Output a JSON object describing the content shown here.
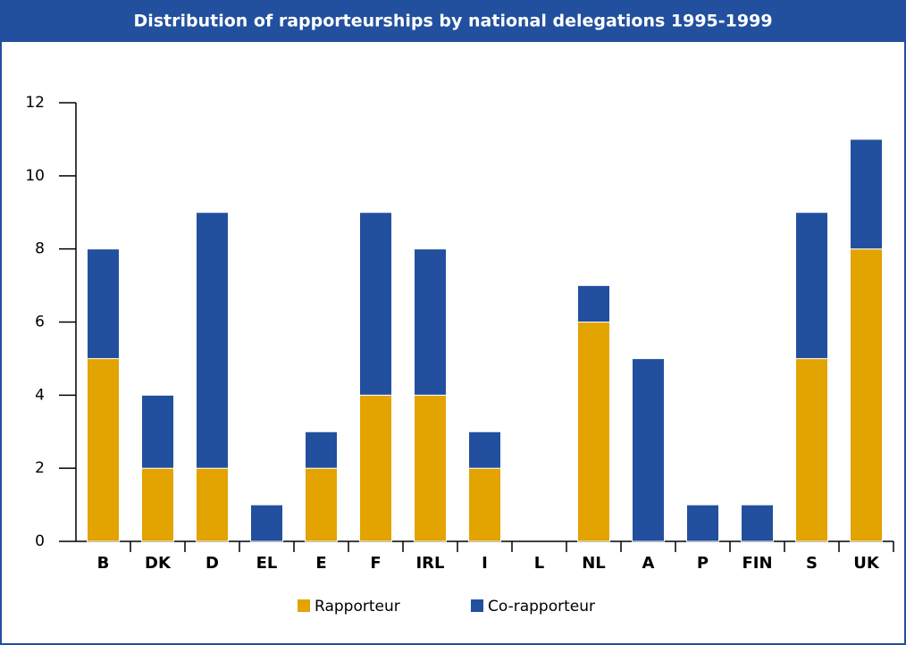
{
  "chart_data": {
    "type": "stacked_bar",
    "title": "Distribution of rapporteurships by national delegations 1995-1999",
    "categories": [
      "B",
      "DK",
      "D",
      "EL",
      "E",
      "F",
      "IRL",
      "I",
      "L",
      "NL",
      "A",
      "P",
      "FIN",
      "S",
      "UK"
    ],
    "series": [
      {
        "name": "Rapporteur",
        "color": "#e3a300",
        "values": [
          5,
          2,
          2,
          0,
          2,
          4,
          4,
          2,
          0,
          6,
          0,
          0,
          0,
          5,
          8
        ]
      },
      {
        "name": "Co-rapporteur",
        "color": "#22509e",
        "values": [
          3,
          2,
          7,
          1,
          1,
          5,
          4,
          1,
          0,
          1,
          5,
          1,
          1,
          4,
          3
        ]
      }
    ],
    "ylim": [
      0,
      12
    ],
    "yticks": [
      0,
      2,
      4,
      6,
      8,
      10,
      12
    ]
  }
}
